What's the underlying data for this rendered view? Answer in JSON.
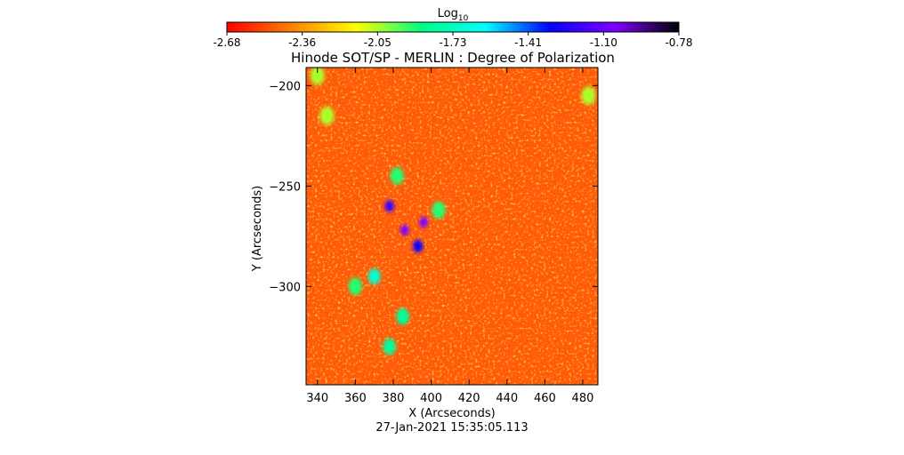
{
  "chart_data": {
    "type": "heatmap",
    "title": "Hinode SOT/SP - MERLIN : Degree of Polarization",
    "xlabel": "X (Arcseconds)",
    "ylabel": "Y (Arcseconds)",
    "timestamp": "27-Jan-2021 15:35:05.113",
    "colorbar": {
      "label_base": "Log",
      "label_sub": "10",
      "range": [
        -2.68,
        -0.78
      ],
      "ticks": [
        "-2.68",
        "-2.36",
        "-2.05",
        "-1.73",
        "-1.41",
        "-1.10",
        "-0.78"
      ],
      "colors": [
        "#ff0000",
        "#ff8000",
        "#ffff00",
        "#00ff80",
        "#00ffff",
        "#0000ff",
        "#8000ff",
        "#000000"
      ]
    },
    "xlim": [
      334,
      488
    ],
    "ylim": [
      -349,
      -191
    ],
    "xticks": [
      340,
      360,
      380,
      400,
      420,
      440,
      460,
      480
    ],
    "yticks": [
      -200,
      -250,
      -300
    ],
    "features": [
      {
        "x": 386,
        "y": -272,
        "value": -1.05
      },
      {
        "x": 396,
        "y": -268,
        "value": -1.05
      },
      {
        "x": 378,
        "y": -260,
        "value": -1.2
      },
      {
        "x": 393,
        "y": -280,
        "value": -1.3
      },
      {
        "x": 370,
        "y": -295,
        "value": -1.7
      },
      {
        "x": 378,
        "y": -330,
        "value": -1.8
      },
      {
        "x": 385,
        "y": -315,
        "value": -1.8
      },
      {
        "x": 360,
        "y": -300,
        "value": -1.9
      },
      {
        "x": 382,
        "y": -245,
        "value": -1.9
      },
      {
        "x": 404,
        "y": -262,
        "value": -1.9
      },
      {
        "x": 340,
        "y": -195,
        "value": -2.05
      },
      {
        "x": 345,
        "y": -215,
        "value": -2.05
      },
      {
        "x": 483,
        "y": -205,
        "value": -2.05
      }
    ]
  }
}
